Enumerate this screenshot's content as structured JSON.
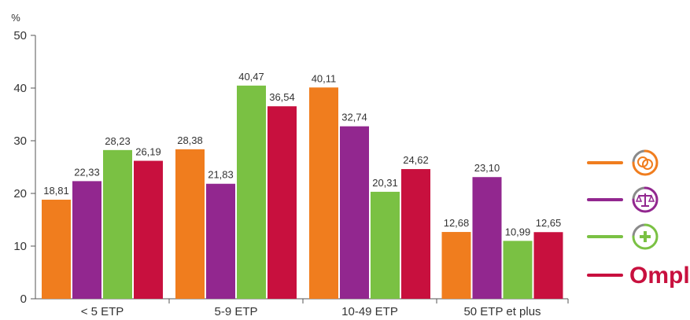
{
  "chart_data": {
    "type": "bar",
    "ylabel": "%",
    "ylim": [
      0,
      50
    ],
    "yticks": [
      0,
      10,
      20,
      30,
      40,
      50
    ],
    "grid": false,
    "legend_position": "right",
    "categories": [
      "< 5 ETP",
      "5-9 ETP",
      "10-49 ETP",
      "50 ETP et plus"
    ],
    "series": [
      {
        "color": "#f07d1e",
        "values": [
          18.81,
          28.38,
          40.11,
          12.68
        ],
        "labels": [
          "18,81",
          "28,38",
          "40,11",
          "12,68"
        ],
        "legend_icon": "coins-icon"
      },
      {
        "color": "#92278f",
        "values": [
          22.33,
          21.83,
          32.74,
          23.1
        ],
        "labels": [
          "22,33",
          "21,83",
          "32,74",
          "23,10"
        ],
        "legend_icon": "scales-icon"
      },
      {
        "color": "#7ac143",
        "values": [
          28.23,
          40.47,
          20.31,
          10.99
        ],
        "labels": [
          "28,23",
          "40,47",
          "20,31",
          "10,99"
        ],
        "legend_icon": "health-cross-icon"
      },
      {
        "color": "#c8103e",
        "values": [
          26.19,
          36.54,
          24.62,
          12.65
        ],
        "labels": [
          "26,19",
          "36,54",
          "24,62",
          "12,65"
        ],
        "legend_text": "Ompl"
      }
    ]
  }
}
